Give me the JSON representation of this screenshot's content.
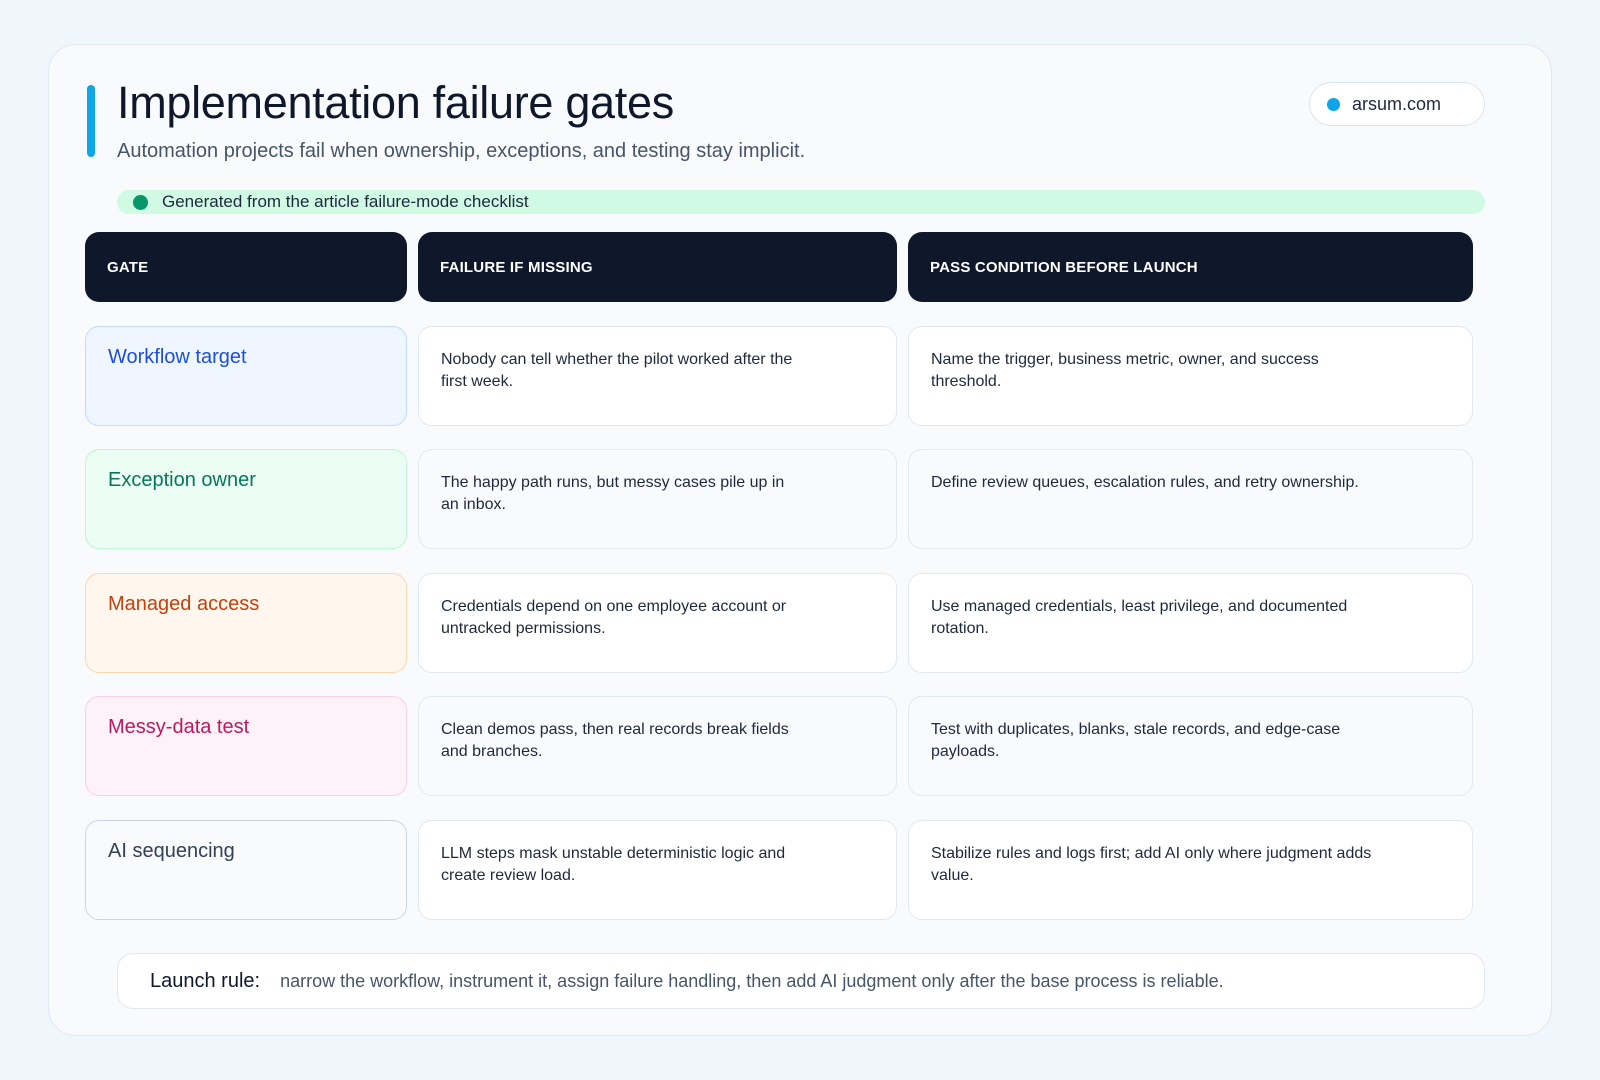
{
  "header": {
    "title": "Implementation failure gates",
    "subtitle": "Automation projects fail when ownership, exceptions, and testing stay implicit.",
    "domain": "arsum.com",
    "source_note": "Generated from the article failure-mode checklist"
  },
  "table": {
    "columns": [
      "GATE",
      "FAILURE IF MISSING",
      "PASS CONDITION BEFORE LAUNCH"
    ],
    "rows": [
      {
        "gate": "Workflow target",
        "failure": "Nobody can tell whether the pilot worked after the first week.",
        "pass": "Name the trigger, business metric, owner, and success threshold."
      },
      {
        "gate": "Exception owner",
        "failure": "The happy path runs, but messy cases pile up in an inbox.",
        "pass": "Define review queues, escalation rules, and retry ownership."
      },
      {
        "gate": "Managed access",
        "failure": "Credentials depend on one employee account or untracked permissions.",
        "pass": "Use managed credentials, least privilege, and documented rotation."
      },
      {
        "gate": "Messy-data test",
        "failure": "Clean demos pass, then real records break fields and branches.",
        "pass": "Test with duplicates, blanks, stale records, and edge-case payloads."
      },
      {
        "gate": "AI sequencing",
        "failure": "LLM steps mask unstable deterministic logic and create review load.",
        "pass": "Stabilize rules and logs first; add AI only where judgment adds value."
      }
    ]
  },
  "footer": {
    "label": "Launch rule:",
    "text": "narrow the workflow, instrument it, assign failure handling, then add AI judgment only after the base process is reliable."
  },
  "colors": {
    "accent": "#0ea5e9",
    "header_bg": "#0f172a",
    "source_dot": "#059669",
    "source_bg": "#d1fae5",
    "gate_styles": [
      {
        "text": "#1d4ed8",
        "bg": "#eff6ff",
        "border": "#bfdbfe"
      },
      {
        "text": "#047857",
        "bg": "#ecfdf5",
        "border": "#bbf7d0"
      },
      {
        "text": "#c2410c",
        "bg": "#fff7ed",
        "border": "#fed7aa"
      },
      {
        "text": "#be185d",
        "bg": "#fdf2f8",
        "border": "#fbcfe8"
      },
      {
        "text": "#334155",
        "bg": "#f8fafc",
        "border": "#cbd5e1"
      }
    ]
  }
}
